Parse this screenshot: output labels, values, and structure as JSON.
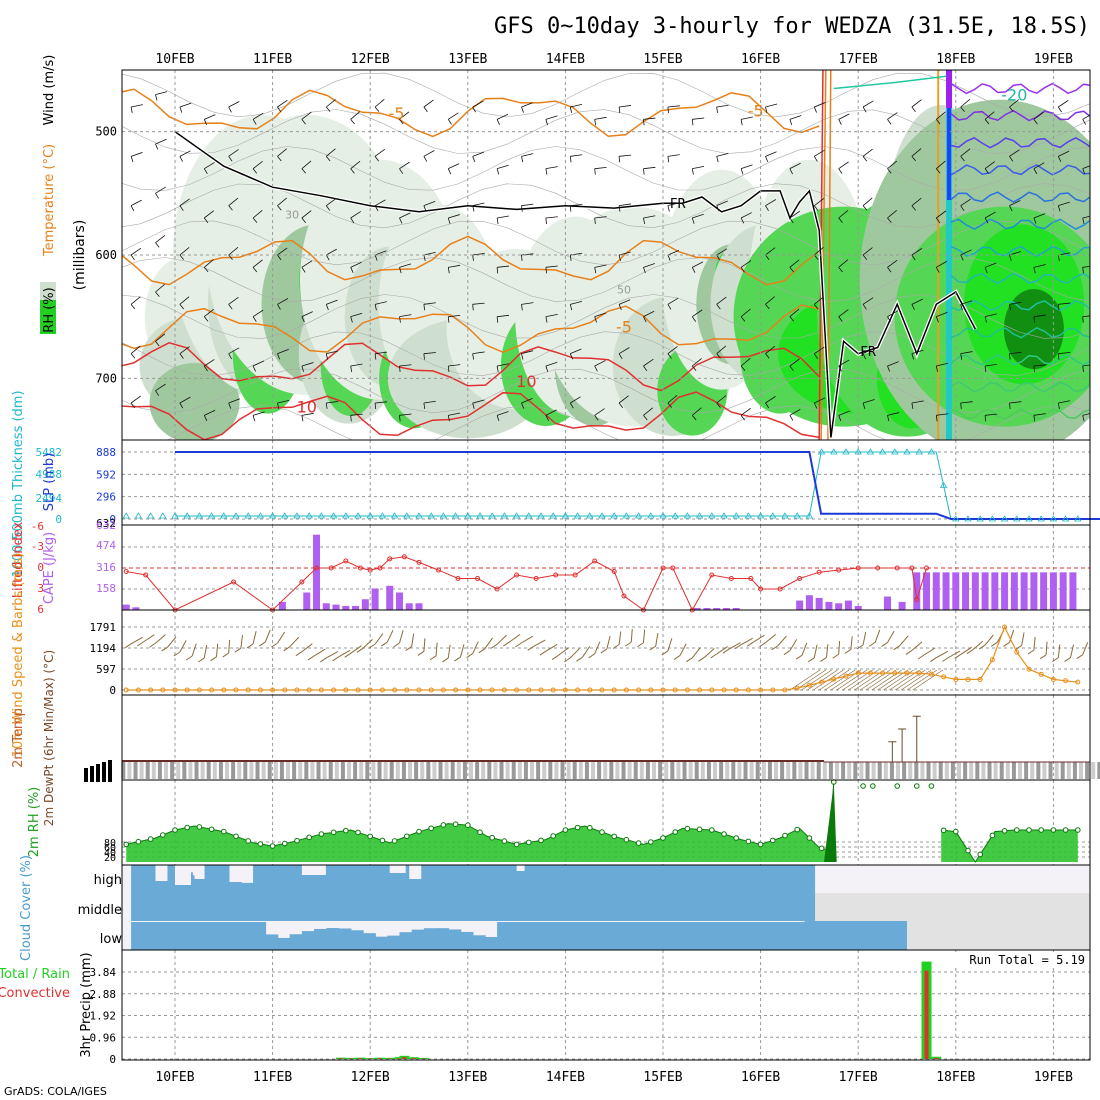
{
  "title": "GFS 0~10day 3-hourly for WEDZA (31.5E, 18.5S)",
  "footer": "GrADS: COLA/IGES",
  "dates": [
    "10FEB",
    "11FEB",
    "12FEB",
    "13FEB",
    "14FEB",
    "15FEB",
    "16FEB",
    "17FEB",
    "18FEB",
    "19FEB"
  ],
  "colors": {
    "temp": "#e8801a",
    "rh": "#22d022",
    "slp": "#1a3ad8",
    "thick": "#20b8c8",
    "cape": "#b060f0",
    "li": "#e03030",
    "wind": "#e8901a",
    "cloud": "#6aaad6",
    "precip_total": "#22d022",
    "precip_conv": "#e03030"
  },
  "chart_data": [
    {
      "type": "heatmap",
      "panel": "upper-air",
      "labels": {
        "rh": "RH (%)",
        "temp": "Temperature (°C)",
        "wind": "Wind (m/s)",
        "yaxis": "(millibars)"
      },
      "y_ticks": [
        500,
        600,
        700
      ],
      "ylim": [
        450,
        750
      ],
      "contour_labels": {
        "temp": [
          "-20",
          "-5",
          "-5",
          "-5",
          "10",
          "10"
        ],
        "rh": [
          "30",
          "50"
        ],
        "freezing": [
          "FR",
          "FR"
        ]
      },
      "freezing_level_mb": [
        [
          0,
          500
        ],
        [
          0.5,
          528
        ],
        [
          1,
          545
        ],
        [
          1.5,
          552
        ],
        [
          2,
          560
        ],
        [
          2.5,
          565
        ],
        [
          3,
          560
        ],
        [
          3.5,
          563
        ],
        [
          4,
          560
        ],
        [
          4.5,
          562
        ],
        [
          5,
          558
        ],
        [
          5.2,
          558
        ],
        [
          5.4,
          553
        ],
        [
          5.6,
          565
        ],
        [
          5.8,
          560
        ],
        [
          6,
          548
        ],
        [
          6.2,
          548
        ],
        [
          6.3,
          570
        ],
        [
          6.4,
          557
        ],
        [
          6.5,
          548
        ],
        [
          6.6,
          580
        ],
        [
          6.72,
          748
        ],
        [
          6.85,
          670
        ],
        [
          7,
          680
        ],
        [
          7.2,
          675
        ],
        [
          7.4,
          640
        ],
        [
          7.6,
          680
        ],
        [
          7.8,
          640
        ],
        [
          8,
          630
        ],
        [
          8.2,
          660
        ]
      ]
    },
    {
      "type": "line",
      "panel": "slp-thickness",
      "labels": {
        "slp": "SLP (mb)",
        "thickness": "1000-500mb Thickness (dm)"
      },
      "left_ticks": [
        5482,
        4988,
        2494,
        0
      ],
      "right_ticks": [
        888,
        592,
        296,
        0
      ],
      "bottom_value": "632",
      "ylim": [
        0,
        888
      ],
      "x": [
        0,
        6.5,
        6.62,
        7.8,
        7.95,
        9.5
      ],
      "series": [
        {
          "name": "SLP",
          "values": [
            888,
            888,
            70,
            70,
            0,
            0
          ]
        },
        {
          "name": "Thickness",
          "values": [
            40,
            40,
            888,
            888,
            0,
            0
          ]
        }
      ]
    },
    {
      "type": "bar",
      "panel": "cape-li",
      "labels": {
        "li": "Lifted Index",
        "cape": "CAPE (J/kg)"
      },
      "left_ticks": [
        "-6",
        "-3",
        "0",
        "3",
        "6"
      ],
      "right_ticks": [
        "632",
        "474",
        "316",
        "158"
      ],
      "cape_x": [
        -0.5,
        -0.4,
        1.1,
        1.35,
        1.45,
        1.55,
        1.65,
        1.75,
        1.85,
        1.95,
        2.05,
        2.2,
        2.3,
        2.4,
        2.5,
        5.35,
        5.45,
        5.55,
        5.65,
        5.75,
        6.4,
        6.5,
        6.6,
        6.7,
        6.8,
        6.9,
        7.0,
        7.1,
        7.3,
        7.45,
        7.6,
        7.7,
        7.8,
        7.9,
        8.0,
        8.1,
        8.2,
        8.3,
        8.4,
        8.5,
        8.6,
        8.7,
        8.8,
        8.9,
        9.0,
        9.1,
        9.2
      ],
      "cape": [
        40,
        20,
        60,
        130,
        560,
        50,
        40,
        30,
        30,
        80,
        160,
        180,
        130,
        50,
        50,
        15,
        15,
        15,
        15,
        15,
        70,
        110,
        90,
        60,
        50,
        70,
        30,
        0,
        100,
        60,
        280,
        280,
        280,
        280,
        280,
        280,
        280,
        280,
        280,
        280,
        280,
        280,
        280,
        280,
        280,
        280,
        280
      ],
      "li_x": [
        -0.5,
        -0.3,
        0,
        0.6,
        1.0,
        1.3,
        1.45,
        1.6,
        1.75,
        1.9,
        2.0,
        2.1,
        2.2,
        2.35,
        2.5,
        2.7,
        2.9,
        3.1,
        3.3,
        3.5,
        3.7,
        3.9,
        4.1,
        4.3,
        4.5,
        4.6,
        4.8,
        5.0,
        5.1,
        5.3,
        5.5,
        5.7,
        5.9,
        6.0,
        6.2,
        6.4,
        6.6,
        6.8,
        7.0,
        7.2,
        7.4,
        7.55,
        7.6,
        7.7
      ],
      "li": [
        0.5,
        1,
        6,
        2,
        6,
        2,
        0,
        0,
        -1,
        0,
        0.3,
        0,
        -1.3,
        -1.6,
        -0.8,
        0.3,
        1.5,
        1.5,
        3,
        1,
        1.5,
        1,
        1,
        -1,
        0.5,
        4,
        6,
        0,
        0,
        6,
        1,
        1.5,
        1.5,
        3,
        3,
        1.5,
        0.6,
        0.3,
        0,
        0,
        0,
        0,
        4.5,
        0
      ]
    },
    {
      "type": "line",
      "panel": "wind-10m",
      "labels": {
        "speed": "10m Wind Speed & Barbs (m/s)"
      },
      "y_ticks": [
        1791,
        1194,
        597,
        0
      ],
      "ylim": [
        0,
        1791
      ],
      "x": [
        -0.5,
        6.3,
        7.0,
        7.5,
        7.7,
        8.0,
        8.3,
        8.5,
        8.7,
        9.0,
        9.5
      ],
      "values": [
        0,
        0,
        480,
        480,
        480,
        300,
        300,
        1791,
        650,
        300,
        150
      ]
    },
    {
      "type": "line",
      "panel": "temp-2m",
      "labels": {
        "temp": "2m Temp",
        "dewpt": "2m DewPt (6hr Min/Max) (°C)"
      },
      "spikes_x": [
        7.35,
        7.45,
        7.6
      ],
      "spikes_height": [
        0.45,
        0.6,
        0.75
      ]
    },
    {
      "type": "area",
      "panel": "rh-2m",
      "labels": {
        "rh": "2m RH (%)"
      },
      "y_ticks": [
        "80",
        "60",
        "40",
        "20"
      ],
      "ylim": [
        0,
        100
      ],
      "x": [
        -0.5,
        -0.2,
        0.0,
        0.2,
        0.5,
        0.8,
        1.0,
        1.2,
        1.5,
        1.8,
        2.0,
        2.2,
        2.5,
        2.8,
        3.0,
        3.2,
        3.5,
        3.8,
        4.0,
        4.2,
        4.5,
        4.8,
        5.0,
        5.2,
        5.5,
        5.8,
        6.0,
        6.2,
        6.4,
        6.6,
        6.72,
        6.75,
        7.85,
        8.0,
        8.2,
        8.4,
        8.6,
        9.2
      ],
      "values": [
        22,
        30,
        40,
        45,
        38,
        24,
        20,
        25,
        35,
        40,
        32,
        24,
        38,
        48,
        46,
        32,
        22,
        28,
        40,
        45,
        32,
        22,
        30,
        42,
        40,
        28,
        22,
        30,
        42,
        18,
        14,
        100,
        40,
        38,
        0,
        38,
        40,
        40
      ]
    },
    {
      "type": "heatmap",
      "panel": "cloud-cover",
      "labels": {
        "cloud": "Cloud Cover (%)",
        "levels": [
          "high",
          "middle",
          "low"
        ]
      }
    },
    {
      "type": "bar",
      "panel": "precip-3hr",
      "labels": {
        "precip": "3hr Precip (mm)",
        "legend_total": "Total / Rain",
        "legend_conv": "Convective"
      },
      "annotation": "Run Total = 5.19",
      "y_ticks": [
        "3.84",
        "2.88",
        "1.92",
        "0.96",
        "0"
      ],
      "ylim": [
        0,
        4.4
      ],
      "x": [
        1.7,
        1.8,
        1.9,
        2.0,
        2.1,
        2.2,
        2.3,
        2.35,
        2.45,
        2.55,
        7.7,
        7.8
      ],
      "total": [
        0.06,
        0.05,
        0.06,
        0.04,
        0.06,
        0.05,
        0.08,
        0.14,
        0.08,
        0.05,
        4.3,
        0.1
      ],
      "convective": [
        0.03,
        0.02,
        0.03,
        0.02,
        0.03,
        0.02,
        0.04,
        0.08,
        0.04,
        0.02,
        3.9,
        0.05
      ]
    }
  ]
}
